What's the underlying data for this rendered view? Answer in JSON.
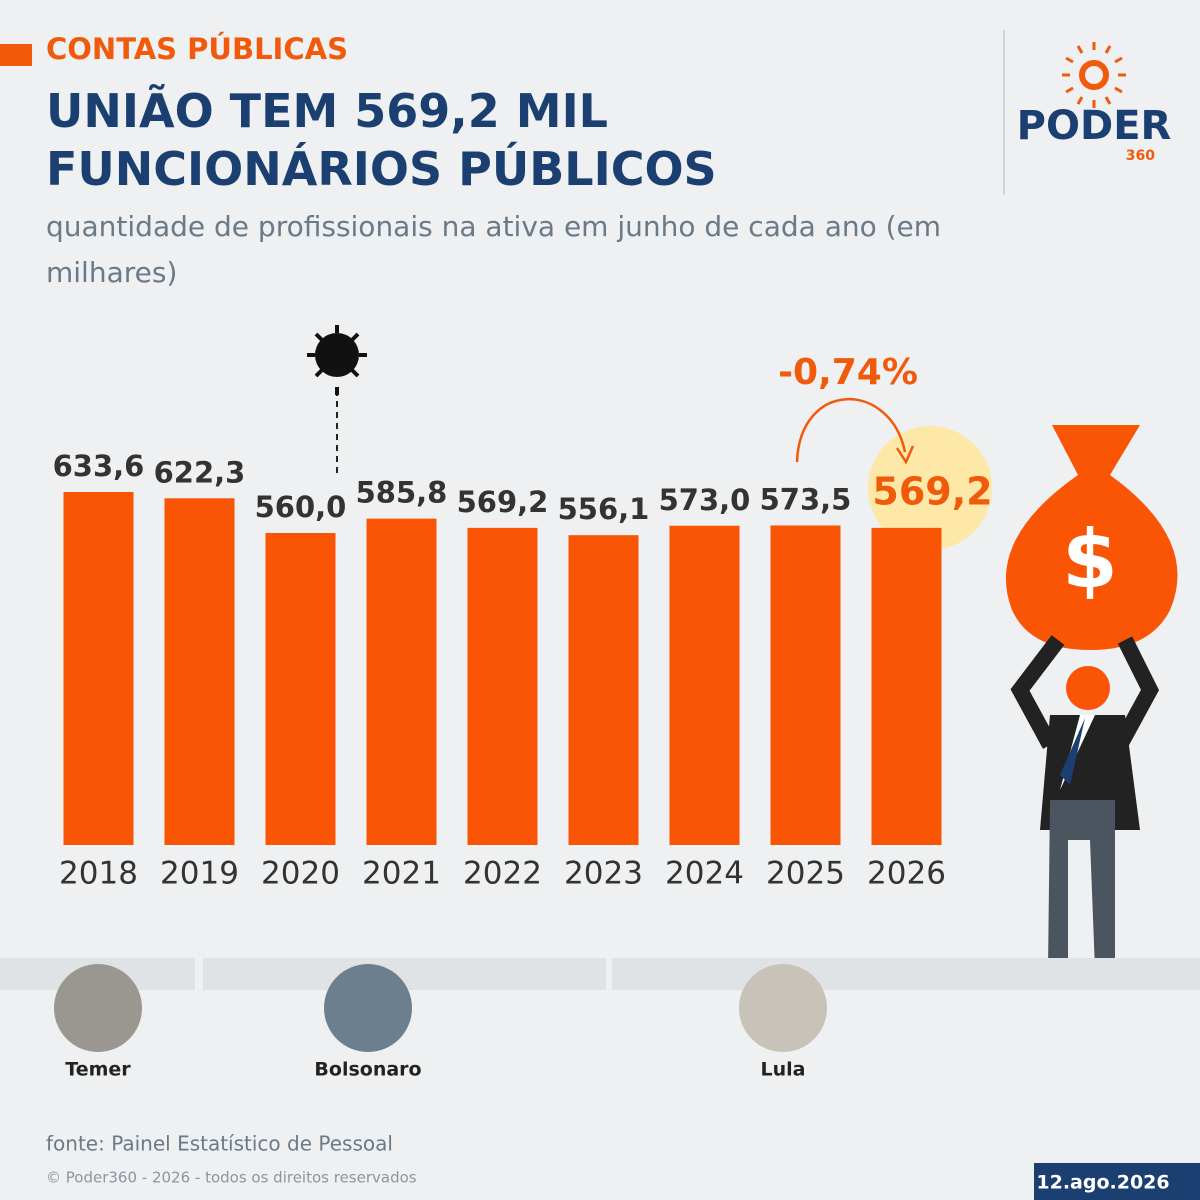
{
  "chart_data": {
    "type": "bar",
    "kicker": "CONTAS PÚBLICAS",
    "title": "UNIÃO TEM 569,2 MIL FUNCIONÁRIOS PÚBLICOS",
    "subtitle": "quantidade de profissionais na ativa em junho de cada ano (em milhares)",
    "categories": [
      "2018",
      "2019",
      "2020",
      "2021",
      "2022",
      "2023",
      "2024",
      "2025",
      "2026"
    ],
    "values": [
      633.6,
      622.3,
      560.0,
      585.8,
      569.2,
      556.1,
      573.0,
      573.5,
      569.2
    ],
    "value_labels": [
      "633,6",
      "622,3",
      "560,0",
      "585,8",
      "569,2",
      "556,1",
      "573,0",
      "573,5",
      "569,2"
    ],
    "color": "#fa5505",
    "highlight_color": "#f05a0a",
    "highlight_category": "2026",
    "ylim": [
      0,
      700
    ],
    "grid": false,
    "annotation": "-0,74%"
  },
  "presidents": [
    "Temer",
    "Bolsonaro",
    "Lula"
  ],
  "source": "fonte: Painel Estatístico de Pessoal",
  "copyright": "© Poder360 - 2026 - todos os direitos reservados",
  "date": "12.ago.2026",
  "logo": {
    "name": "PODER",
    "number": "360"
  }
}
